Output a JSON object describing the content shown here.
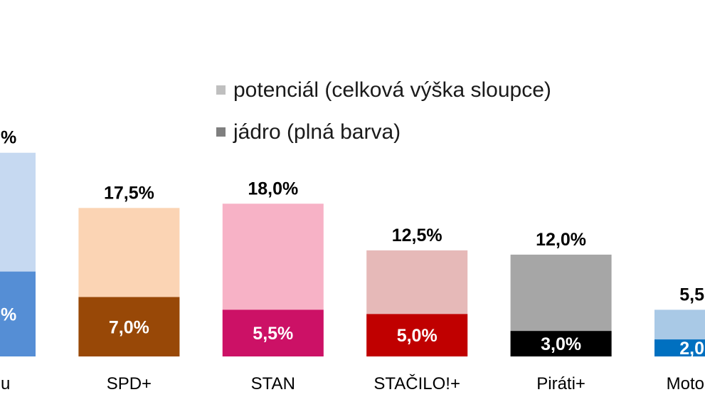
{
  "chart_data": {
    "type": "bar",
    "bar_mode": "overlay",
    "categories": [
      "u",
      "SPD+",
      "STAN",
      "STAČILO!+",
      "Piráti+",
      "Moto"
    ],
    "series": [
      {
        "name": "potenciál (celková výška sloupce)",
        "values": [
          24.0,
          17.5,
          18.0,
          12.5,
          12.0,
          5.5
        ],
        "labels": [
          "%",
          "17,5%",
          "18,0%",
          "12,5%",
          "12,0%",
          "5,5"
        ],
        "colors": [
          "#C6D9F1",
          "#FBD4B4",
          "#F7B2C6",
          "#E6B9B8",
          "#A6A6A6",
          "#A9C9E6"
        ],
        "label_color": "#000000",
        "legend_color": "#BFBFBF"
      },
      {
        "name": "jádro (plná barva)",
        "values": [
          10.0,
          7.0,
          5.5,
          5.0,
          3.0,
          2.0
        ],
        "labels": [
          "%",
          "7,0%",
          "5,5%",
          "5,0%",
          "3,0%",
          "2,0"
        ],
        "colors": [
          "#558ED5",
          "#984807",
          "#CC1166",
          "#C00000",
          "#000000",
          "#0070C0"
        ],
        "label_color": "#FFFFFF",
        "legend_color": "#7F7F7F"
      }
    ],
    "ylim": [
      0,
      42
    ],
    "grid": false,
    "legend_position": "top-center"
  }
}
